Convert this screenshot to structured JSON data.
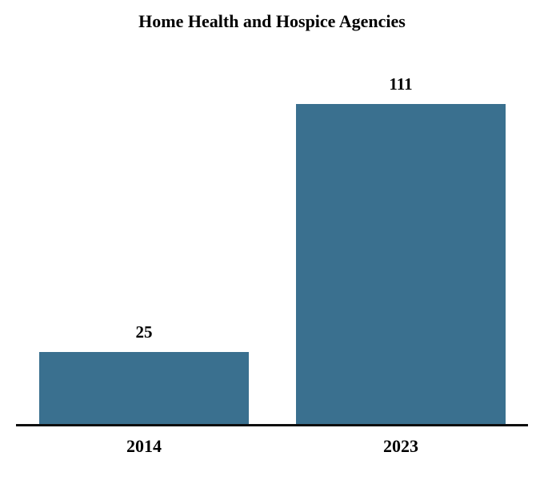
{
  "title": "Home Health and Hospice Agencies",
  "colors": {
    "bar": "#3A708F",
    "axis": "#0D0D0D",
    "text": "#000000",
    "background": "#FFFFFF"
  },
  "chart_data": {
    "type": "bar",
    "title": "Home Health and Hospice Agencies",
    "categories": [
      "2014",
      "2023"
    ],
    "values": [
      25,
      111
    ],
    "data_labels": [
      "25",
      "111"
    ],
    "xlabel": "",
    "ylabel": "",
    "ylim": [
      0,
      111
    ],
    "grid": false,
    "legend": "none",
    "bar_color": "#3A708F",
    "data_labels_position": "above-bars",
    "orientation": "vertical"
  }
}
